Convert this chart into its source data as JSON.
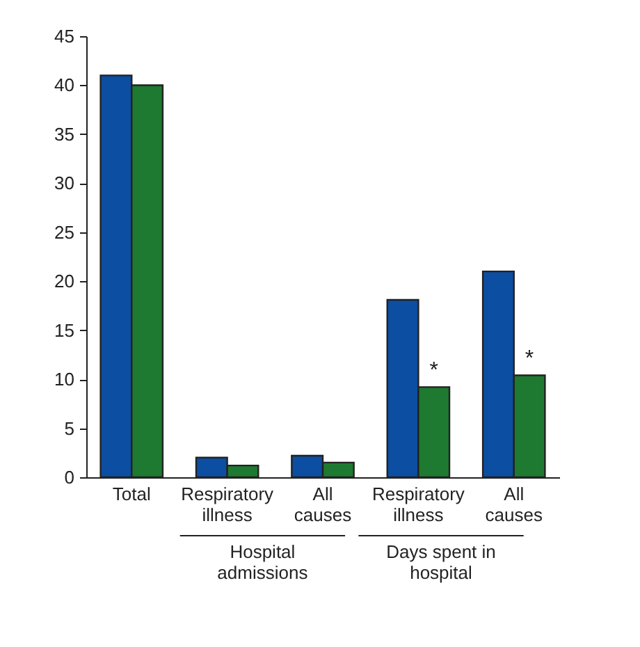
{
  "chart_data": {
    "type": "bar",
    "categories": [
      "Total",
      "Respiratory illness",
      "All causes",
      "Respiratory illness",
      "All causes"
    ],
    "series": [
      {
        "color": "#0b4ea2",
        "values": [
          41,
          2.0,
          2.2,
          18.1,
          21.0
        ]
      },
      {
        "color": "#1e7a30",
        "values": [
          40,
          1.2,
          1.5,
          9.2,
          10.4
        ]
      }
    ],
    "ylim": [
      0,
      45
    ],
    "yticks": [
      0,
      5,
      10,
      15,
      20,
      25,
      30,
      35,
      40,
      45
    ],
    "annotations": [
      "Hospital admissions",
      "Days spent in hospital",
      "*",
      "*"
    ],
    "grid": false,
    "legend": false
  }
}
